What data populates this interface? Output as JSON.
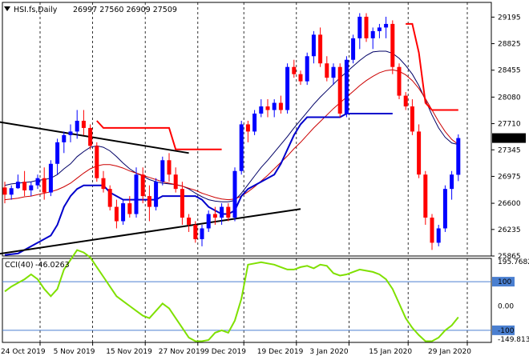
{
  "header": {
    "symbol": "HSI.fs,Daily",
    "ohlc": "26997 27560 26909 27509"
  },
  "cci_header": {
    "name": "CCI(40)",
    "value": "-46.0263"
  },
  "colors": {
    "up": "#0000ff",
    "down": "#ff0000",
    "ma_fast": "#000066",
    "ma_slow": "#cc0000",
    "cci": "#7fe000",
    "price_badge": "#000000"
  },
  "chart_data": [
    {
      "type": "candlestick",
      "title": "HSI.fs,Daily",
      "ylim": [
        25865,
        29400
      ],
      "y_ticks": [
        "29195",
        "28825",
        "28455",
        "28080",
        "27710",
        "27345",
        "26975",
        "26600",
        "26235",
        "25865"
      ],
      "last_price": "27509",
      "x_labels": [
        "24 Oct 2019",
        "5 Nov 2019",
        "15 Nov 2019",
        "27 Nov 2019",
        "9 Dec 2019",
        "19 Dec 2019",
        "3 Jan 2020",
        "15 Jan 2020",
        "29 Jan 2020"
      ],
      "x_label_index": [
        0,
        8,
        16,
        24,
        31,
        39,
        47,
        56,
        65
      ],
      "candles": [
        [
          26820,
          26900,
          26600,
          26720
        ],
        [
          26720,
          26850,
          26650,
          26810
        ],
        [
          26810,
          27000,
          26800,
          26900
        ],
        [
          26900,
          27050,
          26700,
          26780
        ],
        [
          26780,
          26900,
          26700,
          26850
        ],
        [
          26850,
          27000,
          26800,
          26950
        ],
        [
          26950,
          27100,
          26650,
          26750
        ],
        [
          26750,
          27200,
          26700,
          27150
        ],
        [
          27150,
          27500,
          27000,
          27450
        ],
        [
          27450,
          27600,
          27300,
          27550
        ],
        [
          27550,
          27700,
          27450,
          27600
        ],
        [
          27600,
          27900,
          27500,
          27750
        ],
        [
          27750,
          27900,
          27550,
          27650
        ],
        [
          27650,
          27700,
          27350,
          27400
        ],
        [
          27400,
          27450,
          26900,
          26950
        ],
        [
          26950,
          27050,
          26750,
          26800
        ],
        [
          26800,
          26850,
          26500,
          26550
        ],
        [
          26550,
          26650,
          26250,
          26350
        ],
        [
          26350,
          26650,
          26300,
          26600
        ],
        [
          26600,
          26700,
          26400,
          26450
        ],
        [
          26450,
          27100,
          26400,
          27000
        ],
        [
          27000,
          27100,
          26600,
          26700
        ],
        [
          26700,
          26850,
          26350,
          26550
        ],
        [
          26550,
          26950,
          26500,
          26900
        ],
        [
          26900,
          27250,
          26850,
          27200
        ],
        [
          27200,
          27300,
          26900,
          27000
        ],
        [
          27000,
          27100,
          26750,
          26800
        ],
        [
          26800,
          26900,
          26300,
          26400
        ],
        [
          26400,
          26450,
          26200,
          26300
        ],
        [
          26300,
          26350,
          26050,
          26100
        ],
        [
          26100,
          26300,
          26000,
          26250
        ],
        [
          26250,
          26500,
          26200,
          26450
        ],
        [
          26450,
          26550,
          26300,
          26400
        ],
        [
          26400,
          26600,
          26300,
          26550
        ],
        [
          26550,
          26600,
          26350,
          26400
        ],
        [
          26400,
          27100,
          26350,
          27050
        ],
        [
          27050,
          27750,
          27000,
          27700
        ],
        [
          27700,
          27750,
          27450,
          27600
        ],
        [
          27600,
          27900,
          27550,
          27850
        ],
        [
          27850,
          28050,
          27800,
          27950
        ],
        [
          27950,
          28050,
          27800,
          27900
        ],
        [
          27900,
          28050,
          27800,
          28000
        ],
        [
          28000,
          28100,
          27850,
          27900
        ],
        [
          27900,
          28550,
          27850,
          28500
        ],
        [
          28500,
          28600,
          28350,
          28400
        ],
        [
          28400,
          28450,
          28250,
          28300
        ],
        [
          28300,
          28700,
          28250,
          28650
        ],
        [
          28650,
          29000,
          28550,
          28950
        ],
        [
          28950,
          29050,
          28500,
          28550
        ],
        [
          28550,
          28650,
          28300,
          28350
        ],
        [
          28350,
          28550,
          28250,
          28500
        ],
        [
          28500,
          28550,
          27800,
          27850
        ],
        [
          27850,
          28650,
          27800,
          28600
        ],
        [
          28600,
          28950,
          28550,
          28900
        ],
        [
          28900,
          29250,
          28750,
          29200
        ],
        [
          29200,
          29250,
          28850,
          28900
        ],
        [
          28900,
          29050,
          28750,
          29000
        ],
        [
          29000,
          29100,
          28900,
          29050
        ],
        [
          29050,
          29200,
          28900,
          29100
        ],
        [
          29100,
          29150,
          28400,
          28500
        ],
        [
          28500,
          28550,
          28050,
          28100
        ],
        [
          28100,
          28150,
          27900,
          27950
        ],
        [
          27950,
          28050,
          27550,
          27600
        ],
        [
          27600,
          27700,
          26950,
          27000
        ],
        [
          27000,
          27050,
          26300,
          26400
        ],
        [
          26400,
          26450,
          25950,
          26050
        ],
        [
          26050,
          26300,
          26000,
          26250
        ],
        [
          26250,
          26850,
          26200,
          26800
        ],
        [
          26800,
          27050,
          26650,
          27000
        ],
        [
          26997,
          27560,
          26909,
          27509
        ]
      ],
      "series": [
        {
          "name": "",
          "type": "line",
          "color": "#000066",
          "values": [
            26850,
            26870,
            26880,
            26890,
            26900,
            26920,
            26930,
            26950,
            27000,
            27080,
            27150,
            27250,
            27320,
            27380,
            27400,
            27380,
            27330,
            27250,
            27160,
            27080,
            27020,
            26980,
            26930,
            26900,
            26880,
            26870,
            26860,
            26840,
            26800,
            26740,
            26690,
            26650,
            26630,
            26620,
            26620,
            26640,
            26740,
            26860,
            26980,
            27100,
            27200,
            27310,
            27420,
            27530,
            27650,
            27760,
            27870,
            27980,
            28080,
            28170,
            28260,
            28350,
            28430,
            28510,
            28590,
            28660,
            28710,
            28720,
            28720,
            28690,
            28620,
            28520,
            28400,
            28240,
            28040,
            27830,
            27650,
            27520,
            27440,
            27420
          ]
        },
        {
          "name": "",
          "type": "line",
          "color": "#cc0000",
          "values": [
            26650,
            26660,
            26670,
            26690,
            26700,
            26720,
            26740,
            26760,
            26790,
            26830,
            26880,
            26950,
            27020,
            27080,
            27120,
            27140,
            27140,
            27120,
            27090,
            27050,
            27020,
            26990,
            26960,
            26930,
            26900,
            26880,
            26860,
            26840,
            26810,
            26780,
            26740,
            26710,
            26680,
            26660,
            26650,
            26660,
            26700,
            26760,
            26830,
            26910,
            26990,
            27080,
            27170,
            27260,
            27360,
            27450,
            27550,
            27650,
            27740,
            27830,
            27920,
            28000,
            28080,
            28160,
            28240,
            28310,
            28370,
            28420,
            28450,
            28460,
            28440,
            28390,
            28310,
            28200,
            28060,
            27900,
            27740,
            27600,
            27490,
            27420
          ]
        },
        {
          "name": "",
          "type": "line",
          "color": "#0000cc",
          "values": [
            25880,
            25890,
            25900,
            25950,
            26000,
            26050,
            26100,
            26150,
            26300,
            26550,
            26700,
            26800,
            26850,
            26850,
            26850,
            26850,
            26750,
            26700,
            26650,
            26650,
            26650,
            26650,
            26650,
            26650,
            26700,
            26700,
            26700,
            26700,
            26700,
            26700,
            26650,
            26550,
            26500,
            26450,
            26450,
            26500,
            26700,
            26800,
            26850,
            26900,
            26950,
            27000,
            27150,
            27350,
            27550,
            27700,
            27800,
            27800,
            27800,
            27800,
            27800,
            27800,
            27850,
            27850,
            27850,
            27850,
            27850,
            27850,
            27850,
            27850,
            null,
            null,
            null,
            null,
            null,
            null,
            null,
            null,
            null,
            null
          ]
        },
        {
          "name": "",
          "type": "line",
          "color": "#ff0000",
          "values": [
            null,
            null,
            null,
            null,
            null,
            null,
            null,
            null,
            null,
            null,
            null,
            null,
            null,
            null,
            27750,
            27650,
            27650,
            27650,
            27650,
            27650,
            27650,
            27650,
            27650,
            27650,
            27650,
            27650,
            27350,
            27350,
            27350,
            27350,
            27350,
            27350,
            27350,
            27350,
            null,
            null,
            null,
            null,
            null,
            null,
            null,
            null,
            null,
            null,
            null,
            null,
            null,
            null,
            null,
            null,
            null,
            null,
            null,
            null,
            null,
            null,
            null,
            null,
            null,
            null,
            null,
            29100,
            29100,
            28700,
            28000,
            27900,
            27900,
            27900,
            27900,
            27900
          ]
        }
      ],
      "trendlines": [
        {
          "from": [
            -2,
            27750
          ],
          "to": [
            28,
            27300
          ],
          "color": "#000000"
        },
        {
          "from": [
            -2,
            25880
          ],
          "to": [
            45,
            26520
          ],
          "color": "#000000"
        }
      ]
    },
    {
      "type": "line",
      "title": "CCI(40) -46.0263",
      "ylim": [
        -149.813,
        195.7682
      ],
      "y_ticks": [
        "195.7682",
        "100",
        "0.00",
        "-100",
        "-149.813"
      ],
      "levels": [
        100,
        -100
      ],
      "series": [
        {
          "name": "CCI(40)",
          "color": "#7fe000",
          "values": [
            60,
            80,
            95,
            110,
            130,
            110,
            70,
            40,
            70,
            150,
            190,
            230,
            220,
            200,
            160,
            120,
            80,
            40,
            20,
            0,
            -20,
            -40,
            -50,
            -20,
            10,
            -10,
            -50,
            -90,
            -130,
            -145,
            -145,
            -140,
            -110,
            -100,
            -110,
            -60,
            30,
            170,
            175,
            180,
            175,
            170,
            160,
            150,
            150,
            160,
            165,
            155,
            170,
            165,
            135,
            125,
            130,
            140,
            150,
            145,
            140,
            130,
            110,
            70,
            10,
            -50,
            -90,
            -120,
            -145,
            -145,
            -130,
            -100,
            -80,
            -46.0263
          ]
        }
      ]
    }
  ]
}
